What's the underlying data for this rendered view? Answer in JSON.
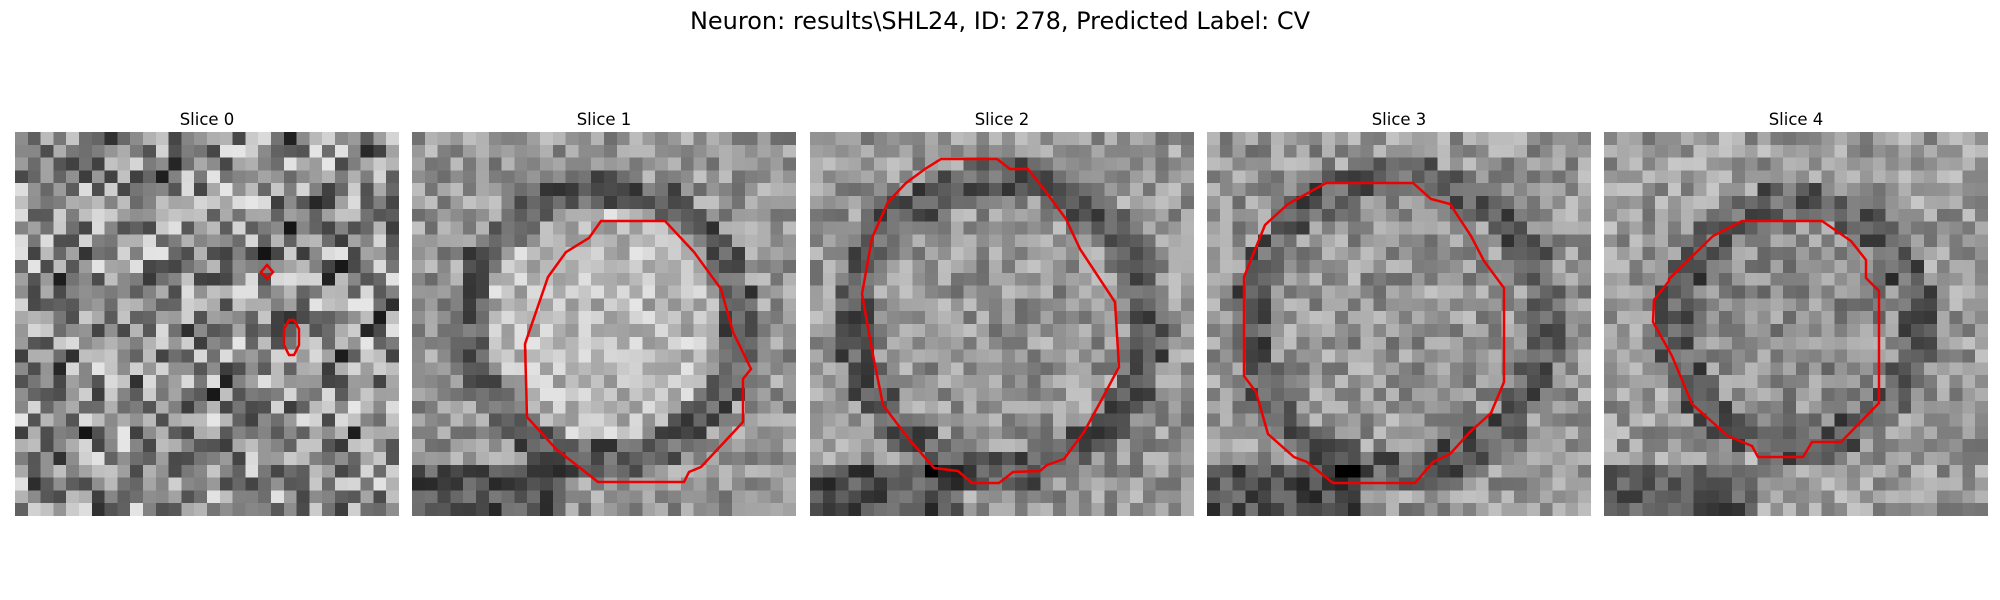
{
  "figure": {
    "title": "Neuron: results\\SHL24, ID: 278, Predicted Label: CV",
    "contour_color": "#ee0000",
    "colormap": "gray"
  },
  "panels": [
    {
      "title": "Slice 0",
      "texture": "noise"
    },
    {
      "title": "Slice 1",
      "texture": "ring-bright-center"
    },
    {
      "title": "Slice 2",
      "texture": "ring-textured"
    },
    {
      "title": "Slice 3",
      "texture": "ring-textured"
    },
    {
      "title": "Slice 4",
      "texture": "ring-dark"
    }
  ]
}
